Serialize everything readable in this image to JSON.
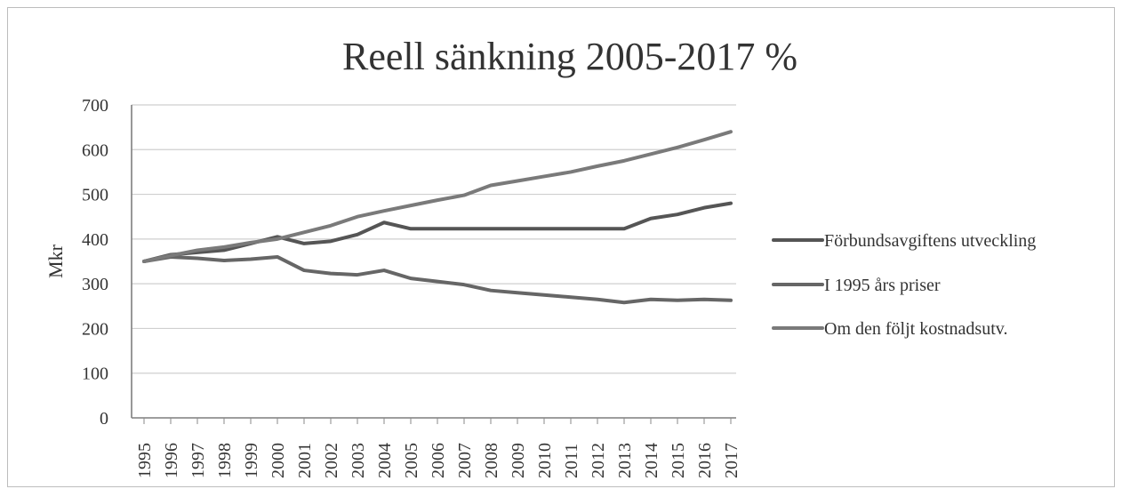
{
  "chart_data": {
    "type": "line",
    "title": "Reell sänkning 2005-2017 %",
    "xlabel": "",
    "ylabel": "Mkr",
    "ylim": [
      0,
      700
    ],
    "yticks": [
      0,
      100,
      200,
      300,
      400,
      500,
      600,
      700
    ],
    "grid": true,
    "legend_position": "right",
    "categories": [
      "1995",
      "1996",
      "1997",
      "1998",
      "1999",
      "2000",
      "2001",
      "2002",
      "2003",
      "2004",
      "2005",
      "2006",
      "2007",
      "2008",
      "2009",
      "2010",
      "2011",
      "2012",
      "2013",
      "2014",
      "2015",
      "2016",
      "2017"
    ],
    "series": [
      {
        "name": "Förbundsavgiftens utveckling",
        "color": "#555555",
        "values": [
          350,
          365,
          370,
          375,
          390,
          405,
          390,
          395,
          410,
          437,
          423,
          423,
          423,
          423,
          423,
          423,
          423,
          423,
          423,
          446,
          455,
          470,
          480
        ]
      },
      {
        "name": "I 1995 års priser",
        "color": "#666666",
        "values": [
          350,
          360,
          357,
          352,
          355,
          360,
          330,
          323,
          320,
          330,
          312,
          305,
          298,
          285,
          280,
          275,
          270,
          265,
          258,
          265,
          263,
          265,
          263
        ]
      },
      {
        "name": "Om den följt kostnadsutv.",
        "color": "#7a7a7a",
        "values": [
          350,
          363,
          375,
          382,
          392,
          400,
          415,
          430,
          450,
          463,
          475,
          487,
          498,
          520,
          530,
          540,
          550,
          563,
          575,
          590,
          605,
          622,
          640
        ]
      }
    ]
  }
}
